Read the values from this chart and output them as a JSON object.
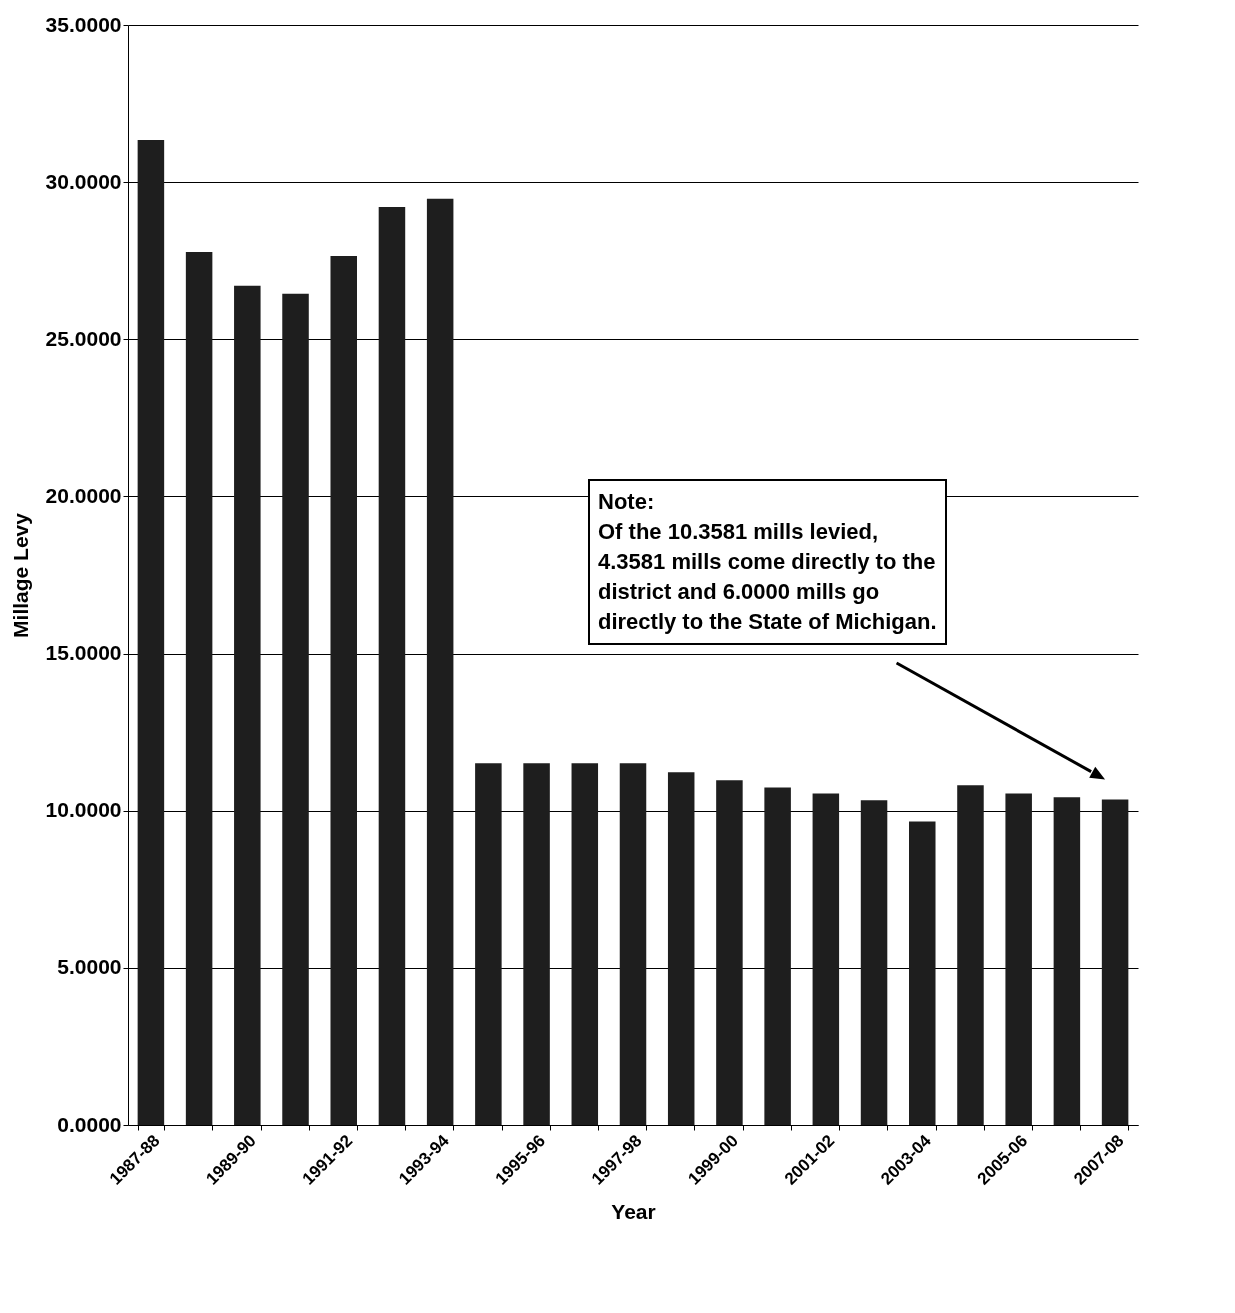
{
  "chart_data": {
    "type": "bar",
    "xlabel": "Year",
    "ylabel": "Millage Levy",
    "categories": [
      "1987-88",
      null,
      "1989-90",
      null,
      "1991-92",
      null,
      "1993-94",
      null,
      "1995-96",
      null,
      "1997-98",
      null,
      "1999-00",
      null,
      "2001-02",
      null,
      "2003-04",
      null,
      "2005-06",
      null,
      "2007-08"
    ],
    "values": [
      31.34,
      27.78,
      26.7,
      26.45,
      27.65,
      29.21,
      29.47,
      11.51,
      11.51,
      11.51,
      11.51,
      11.22,
      10.97,
      10.74,
      10.55,
      10.33,
      9.66,
      10.81,
      10.55,
      10.43,
      10.36
    ],
    "color": "#1e1e1e",
    "ylim": [
      0,
      35
    ],
    "yticks": [
      {
        "value": 0,
        "label": "0.0000"
      },
      {
        "value": 5,
        "label": "5.0000"
      },
      {
        "value": 10,
        "label": "10.0000"
      },
      {
        "value": 15,
        "label": "15.0000"
      },
      {
        "value": 20,
        "label": "20.0000"
      },
      {
        "value": 25,
        "label": "25.0000"
      },
      {
        "value": 30,
        "label": "30.0000"
      },
      {
        "value": 35,
        "label": "35.0000"
      }
    ],
    "grid": "y",
    "annotations": [
      "Note:\nOf the 10.3581 mills levied,\n4.3581 mills come directly to the\ndistrict and 6.0000 mills go\ndirectly to the State of Michigan."
    ]
  }
}
